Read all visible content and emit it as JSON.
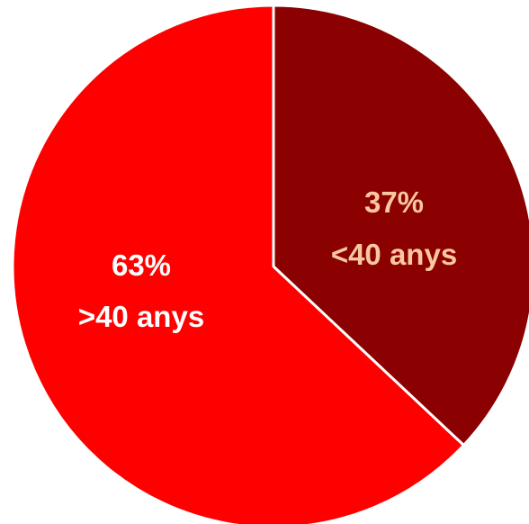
{
  "chart_data": {
    "type": "pie",
    "title": "",
    "slices": [
      {
        "pct_label": "37%",
        "label": "<40 anys",
        "value": 37,
        "color": "#8B0000",
        "text_color": "#F9C7A0"
      },
      {
        "pct_label": "63%",
        "label": ">40 anys",
        "value": 63,
        "color": "#FF0000",
        "text_color": "#FFFFFF"
      }
    ],
    "start": "12 o'clock, clockwise",
    "legend": "none"
  }
}
